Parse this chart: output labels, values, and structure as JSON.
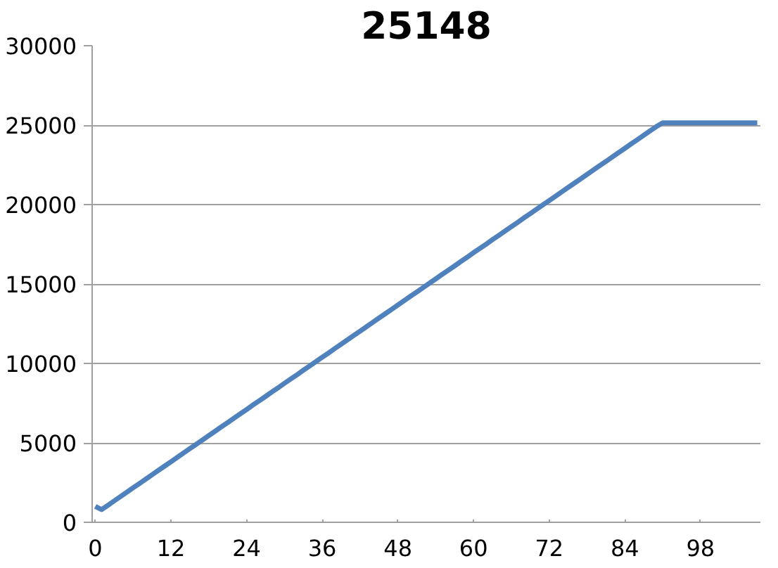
{
  "chart_data": {
    "type": "line",
    "title": "25148",
    "categories": [
      "0",
      null,
      null,
      null,
      null,
      null,
      null,
      null,
      null,
      null,
      null,
      null,
      "12",
      null,
      null,
      null,
      null,
      null,
      null,
      null,
      null,
      null,
      null,
      null,
      "24",
      null,
      null,
      null,
      null,
      null,
      null,
      null,
      null,
      null,
      null,
      null,
      "36",
      null,
      null,
      null,
      null,
      null,
      null,
      null,
      null,
      null,
      null,
      null,
      "48",
      null,
      null,
      null,
      null,
      null,
      null,
      null,
      null,
      null,
      null,
      null,
      "60",
      null,
      null,
      null,
      null,
      null,
      null,
      null,
      null,
      null,
      null,
      null,
      "72",
      null,
      null,
      null,
      null,
      null,
      null,
      null,
      null,
      null,
      null,
      null,
      "84",
      null,
      null,
      null,
      null,
      null,
      null,
      null,
      null,
      null,
      null,
      null,
      "98",
      null,
      null,
      null,
      null,
      null,
      null,
      null,
      null,
      null
    ],
    "series": [
      {
        "color": "#4f81bd",
        "values": [
          1000,
          800,
          1070,
          1350,
          1620,
          1900,
          2170,
          2440,
          2720,
          2990,
          3270,
          3540,
          3810,
          4090,
          4360,
          4640,
          4910,
          5180,
          5460,
          5730,
          6010,
          6280,
          6550,
          6830,
          7100,
          7380,
          7650,
          7920,
          8200,
          8470,
          8750,
          9020,
          9290,
          9570,
          9840,
          10120,
          10390,
          10660,
          10940,
          11210,
          11490,
          11760,
          12030,
          12310,
          12580,
          12860,
          13130,
          13400,
          13680,
          13950,
          14230,
          14500,
          14770,
          15050,
          15320,
          15600,
          15870,
          16140,
          16420,
          16690,
          16970,
          17240,
          17510,
          17790,
          18060,
          18340,
          18610,
          18880,
          19160,
          19430,
          19710,
          19980,
          20250,
          20530,
          20800,
          21080,
          21350,
          21620,
          21900,
          22170,
          22450,
          22720,
          22990,
          23270,
          23540,
          23820,
          24090,
          24360,
          24640,
          24910,
          25148,
          25148,
          25148,
          25148,
          25148,
          25148,
          25148,
          25148,
          25148,
          25148,
          25148,
          25148,
          25148,
          25148,
          25148,
          25148
        ]
      }
    ],
    "ylim": [
      0,
      30000
    ],
    "yticks": [
      0,
      5000,
      10000,
      15000,
      20000,
      25000,
      30000
    ],
    "grid": "y",
    "marker": "none",
    "line_style": "solid"
  }
}
